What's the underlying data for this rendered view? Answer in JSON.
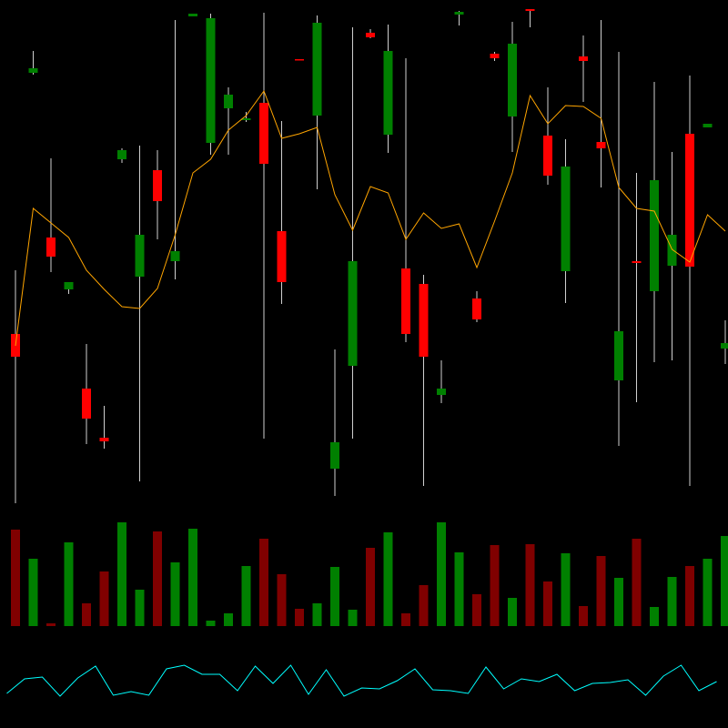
{
  "chart_data": [
    {
      "type": "candlestick",
      "ylim": [
        0,
        560
      ],
      "open": [
        193,
        480,
        299,
        242,
        133,
        79,
        385,
        256,
        373,
        273,
        542,
        403,
        441,
        428,
        447,
        306,
        495,
        433,
        45,
        158,
        524,
        412,
        265,
        248,
        126,
        544,
        232,
        501,
        432,
        550,
        411,
        262,
        498,
        404,
        142,
        273,
        240,
        268,
        413,
        420,
        177
      ],
      "high": [
        263,
        504,
        386,
        250,
        182,
        114,
        397,
        400,
        395,
        538,
        545,
        545,
        464,
        437,
        546,
        427,
        495,
        543,
        176,
        530,
        528,
        533,
        496,
        258,
        164,
        548,
        240,
        503,
        536,
        550,
        464,
        407,
        521,
        538,
        503,
        370,
        470,
        393,
        477,
        424,
        208
      ],
      "low": [
        7,
        478,
        261,
        237,
        72,
        67,
        381,
        31,
        297,
        253,
        542,
        390,
        390,
        426,
        78,
        226,
        494,
        352,
        15,
        78,
        518,
        392,
        184,
        26,
        117,
        532,
        206,
        493,
        393,
        530,
        357,
        227,
        448,
        354,
        70,
        118,
        162,
        164,
        26,
        420,
        160
      ],
      "close": [
        168,
        485,
        278,
        250,
        100,
        75,
        395,
        302,
        339,
        284,
        545,
        540,
        456,
        430,
        380,
        250,
        494,
        535,
        74,
        273,
        519,
        504,
        193,
        168,
        133,
        547,
        209,
        496,
        512,
        548,
        367,
        377,
        493,
        397,
        196,
        271,
        362,
        302,
        267,
        424,
        183
      ],
      "up_color": "#008000",
      "down_color": "#ff0000",
      "wick_color": "#d0d0d0",
      "series": [
        {
          "color": "#ffa500",
          "values": [
            180,
            331,
            315,
            299,
            263,
            242,
            223,
            221,
            243,
            302,
            370,
            385,
            417,
            433,
            460,
            408,
            413,
            420,
            346,
            307,
            355,
            348,
            297,
            326,
            309,
            314,
            266,
            317,
            370,
            455,
            424,
            444,
            443,
            430,
            354,
            331,
            328,
            286,
            272,
            324,
            306
          ]
        }
      ]
    },
    {
      "type": "bar",
      "ylim": [
        0,
        115
      ],
      "up_color": "#008000",
      "down_color": "#800000",
      "values": [
        106,
        74,
        3,
        92,
        25,
        60,
        114,
        40,
        104,
        70,
        107,
        6,
        14,
        66,
        96,
        57,
        19,
        25,
        65,
        18,
        86,
        103,
        14,
        45,
        114,
        81,
        35,
        89,
        31,
        90,
        49,
        80,
        22,
        77,
        53,
        96,
        21,
        54,
        66,
        74,
        99
      ]
    },
    {
      "type": "line",
      "ylim": [
        0,
        100
      ],
      "color": "#00ffff",
      "values": [
        38,
        54,
        56,
        35,
        55,
        68,
        36,
        40,
        36,
        65,
        69,
        59,
        59,
        41,
        68,
        49,
        69,
        37,
        64,
        35,
        44,
        43,
        52,
        65,
        42,
        41,
        38,
        67,
        43,
        54,
        51,
        59,
        41,
        49,
        50,
        53,
        36,
        57,
        69,
        41,
        51
      ]
    }
  ]
}
